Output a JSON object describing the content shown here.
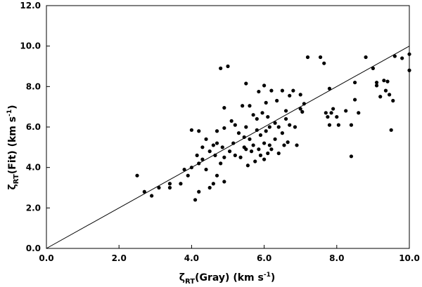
{
  "chart_data": {
    "type": "scatter",
    "title": "",
    "xlabel": {
      "symbol": "ζ",
      "subscript": "RT",
      "text": "(Gray) (km s",
      "superscript": "-1",
      "close": ")"
    },
    "ylabel": {
      "symbol": "ζ",
      "subscript": "RT",
      "text": "(Fit) (km s",
      "superscript": "-1",
      "close": ")"
    },
    "xlim": [
      0,
      10
    ],
    "ylim": [
      0,
      12
    ],
    "x_ticks": [
      "0.0",
      "2.0",
      "4.0",
      "6.0",
      "8.0",
      "10.0"
    ],
    "y_ticks": [
      "0.0",
      "2.0",
      "4.0",
      "6.0",
      "8.0",
      "10.0",
      "12.0"
    ],
    "grid": false,
    "point_color": "#000000",
    "reference_line": {
      "label": "",
      "from": [
        0,
        0
      ],
      "to": [
        10,
        10
      ]
    },
    "points": [
      [
        2.5,
        3.6
      ],
      [
        2.7,
        2.8
      ],
      [
        2.9,
        2.6
      ],
      [
        3.1,
        3.0
      ],
      [
        3.4,
        3.0
      ],
      [
        3.4,
        3.2
      ],
      [
        3.7,
        3.2
      ],
      [
        3.8,
        3.9
      ],
      [
        3.9,
        3.6
      ],
      [
        4.0,
        5.85
      ],
      [
        4.0,
        4.0
      ],
      [
        4.1,
        2.4
      ],
      [
        4.15,
        4.6
      ],
      [
        4.2,
        4.2
      ],
      [
        4.2,
        2.8
      ],
      [
        4.2,
        5.8
      ],
      [
        4.3,
        4.4
      ],
      [
        4.3,
        5.0
      ],
      [
        4.4,
        3.9
      ],
      [
        4.4,
        5.4
      ],
      [
        4.5,
        3.0
      ],
      [
        4.5,
        4.8
      ],
      [
        4.6,
        5.1
      ],
      [
        4.6,
        3.2
      ],
      [
        4.65,
        4.6
      ],
      [
        4.7,
        5.2
      ],
      [
        4.7,
        3.6
      ],
      [
        4.7,
        5.8
      ],
      [
        4.8,
        4.2
      ],
      [
        4.8,
        8.9
      ],
      [
        4.85,
        5.0
      ],
      [
        4.9,
        4.5
      ],
      [
        4.9,
        6.95
      ],
      [
        4.9,
        5.95
      ],
      [
        4.9,
        3.3
      ],
      [
        5.0,
        9.0
      ],
      [
        5.05,
        4.8
      ],
      [
        5.1,
        6.3
      ],
      [
        5.15,
        5.2
      ],
      [
        5.2,
        6.1
      ],
      [
        5.2,
        4.6
      ],
      [
        5.3,
        5.7
      ],
      [
        5.35,
        4.5
      ],
      [
        5.4,
        7.05
      ],
      [
        5.45,
        5.5
      ],
      [
        5.45,
        5.0
      ],
      [
        5.5,
        4.9
      ],
      [
        5.5,
        8.15
      ],
      [
        5.5,
        6.0
      ],
      [
        5.55,
        4.1
      ],
      [
        5.6,
        5.4
      ],
      [
        5.6,
        7.05
      ],
      [
        5.65,
        4.8
      ],
      [
        5.7,
        6.6
      ],
      [
        5.7,
        5.1
      ],
      [
        5.75,
        4.3
      ],
      [
        5.8,
        5.85
      ],
      [
        5.8,
        6.4
      ],
      [
        5.85,
        4.9
      ],
      [
        5.85,
        7.75
      ],
      [
        5.9,
        5.6
      ],
      [
        5.9,
        4.6
      ],
      [
        5.95,
        6.7
      ],
      [
        6.0,
        5.2
      ],
      [
        6.0,
        8.05
      ],
      [
        6.0,
        4.4
      ],
      [
        6.05,
        5.8
      ],
      [
        6.05,
        7.2
      ],
      [
        6.1,
        6.5
      ],
      [
        6.1,
        4.7
      ],
      [
        6.15,
        5.1
      ],
      [
        6.15,
        6.0
      ],
      [
        6.2,
        7.8
      ],
      [
        6.2,
        4.9
      ],
      [
        6.3,
        6.2
      ],
      [
        6.3,
        5.4
      ],
      [
        6.35,
        7.3
      ],
      [
        6.4,
        6.0
      ],
      [
        6.4,
        4.7
      ],
      [
        6.5,
        7.8
      ],
      [
        6.5,
        5.7
      ],
      [
        6.55,
        5.1
      ],
      [
        6.6,
        6.8
      ],
      [
        6.6,
        6.4
      ],
      [
        6.65,
        5.25
      ],
      [
        6.7,
        7.55
      ],
      [
        6.7,
        6.1
      ],
      [
        6.8,
        7.8
      ],
      [
        6.85,
        6.0
      ],
      [
        6.9,
        5.1
      ],
      [
        7.0,
        7.6
      ],
      [
        7.0,
        6.9
      ],
      [
        7.05,
        6.75
      ],
      [
        7.1,
        7.15
      ],
      [
        7.2,
        9.45
      ],
      [
        7.55,
        9.45
      ],
      [
        7.65,
        9.15
      ],
      [
        7.7,
        6.7
      ],
      [
        7.75,
        6.5
      ],
      [
        7.8,
        6.1
      ],
      [
        7.8,
        7.9
      ],
      [
        7.85,
        6.7
      ],
      [
        7.9,
        6.9
      ],
      [
        8.0,
        6.5
      ],
      [
        8.05,
        6.1
      ],
      [
        8.25,
        6.8
      ],
      [
        8.4,
        6.1
      ],
      [
        8.4,
        4.55
      ],
      [
        8.5,
        7.35
      ],
      [
        8.5,
        8.2
      ],
      [
        8.6,
        6.7
      ],
      [
        8.8,
        9.45
      ],
      [
        9.0,
        8.9
      ],
      [
        9.1,
        8.2
      ],
      [
        9.2,
        7.5
      ],
      [
        9.3,
        8.3
      ],
      [
        9.35,
        7.8
      ],
      [
        9.4,
        8.25
      ],
      [
        9.45,
        7.6
      ],
      [
        9.5,
        5.85
      ],
      [
        9.55,
        7.3
      ],
      [
        9.6,
        9.5
      ],
      [
        9.8,
        9.4
      ],
      [
        10.0,
        9.6
      ],
      [
        10.0,
        8.8
      ],
      [
        9.1,
        8.05
      ]
    ]
  }
}
